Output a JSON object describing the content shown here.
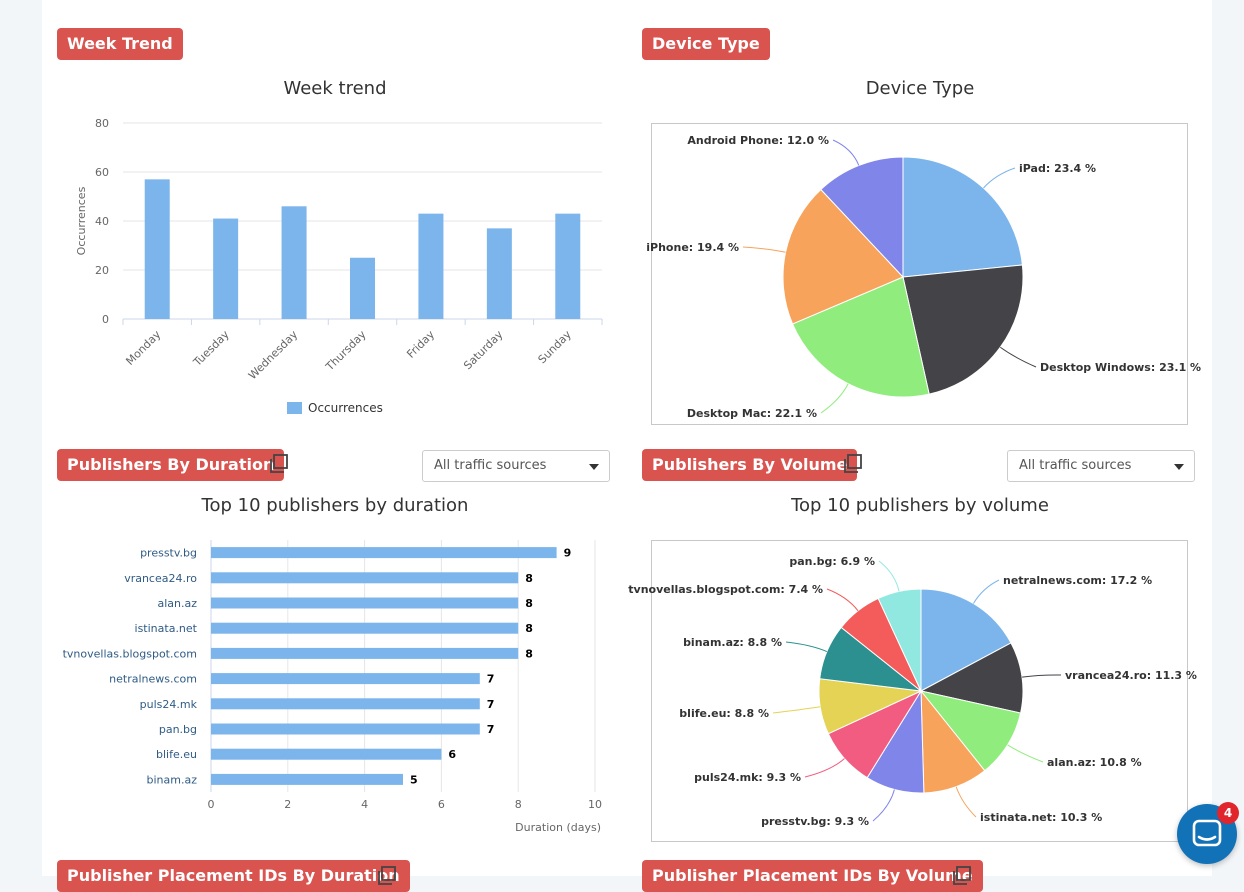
{
  "sections": {
    "week_trend": {
      "badge": "Week Trend",
      "chart_title": "Week trend"
    },
    "device_type": {
      "badge": "Device Type",
      "chart_title": "Device Type"
    },
    "pub_duration": {
      "badge": "Publishers By Duration",
      "chart_title": "Top 10 publishers by duration",
      "filter": "All traffic sources"
    },
    "pub_volume": {
      "badge": "Publishers By Volume",
      "chart_title": "Top 10 publishers by volume",
      "filter": "All traffic sources"
    },
    "placement_duration": {
      "badge": "Publisher Placement IDs By Duration"
    },
    "placement_volume": {
      "badge": "Publisher Placement IDs By Volume"
    }
  },
  "chat": {
    "count": "4"
  },
  "colors": {
    "accent": "#d9534f",
    "bar": "#7cb5ec",
    "chat": "#1272b8"
  },
  "icons": {
    "copy": "copy-icon",
    "chat": "chat-bubble-icon",
    "caret": "caret-down-icon"
  },
  "chart_data": [
    {
      "type": "bar",
      "title": "Week trend",
      "categories": [
        "Monday",
        "Tuesday",
        "Wednesday",
        "Thursday",
        "Friday",
        "Saturday",
        "Sunday"
      ],
      "series": [
        {
          "name": "Occurrences",
          "values": [
            57,
            41,
            46,
            25,
            43,
            37,
            43
          ]
        }
      ],
      "ylabel": "Occurrences",
      "ylim": [
        0,
        80
      ],
      "yticks": [
        "0",
        "20",
        "40",
        "60",
        "80"
      ],
      "grid": true,
      "legend": "bottom"
    },
    {
      "type": "pie",
      "title": "Device Type",
      "slices": [
        {
          "label": "iPad: 23.4 %",
          "value": 23.4,
          "color": "#7cb5ec"
        },
        {
          "label": "Desktop Windows: 23.1 %",
          "value": 23.1,
          "color": "#434348"
        },
        {
          "label": "Desktop Mac: 22.1 %",
          "value": 22.1,
          "color": "#90ed7d"
        },
        {
          "label": "iPhone: 19.4 %",
          "value": 19.4,
          "color": "#f7a35c"
        },
        {
          "label": "Android Phone: 12.0 %",
          "value": 12.0,
          "color": "#8085e9"
        }
      ]
    },
    {
      "type": "bar",
      "orientation": "horizontal",
      "title": "Top 10 publishers by duration",
      "categories": [
        "presstv.bg",
        "vrancea24.ro",
        "alan.az",
        "istinata.net",
        "tvnovellas.blogspot.com",
        "netralnews.com",
        "puls24.mk",
        "pan.bg",
        "blife.eu",
        "binam.az"
      ],
      "values": [
        9,
        8,
        8,
        8,
        8,
        7,
        7,
        7,
        6,
        5
      ],
      "data_labels": [
        "9",
        "8",
        "8",
        "8",
        "8",
        "7",
        "7",
        "7",
        "6",
        "5"
      ],
      "xlabel": "Duration (days)",
      "xlim": [
        0,
        10
      ],
      "xticks": [
        "0",
        "2",
        "4",
        "6",
        "8",
        "10"
      ],
      "grid": true
    },
    {
      "type": "pie",
      "title": "Top 10 publishers by volume",
      "slices": [
        {
          "label": "netralnews.com: 17.2 %",
          "value": 17.2,
          "color": "#7cb5ec"
        },
        {
          "label": "vrancea24.ro: 11.3 %",
          "value": 11.3,
          "color": "#434348"
        },
        {
          "label": "alan.az: 10.8 %",
          "value": 10.8,
          "color": "#90ed7d"
        },
        {
          "label": "istinata.net: 10.3 %",
          "value": 10.3,
          "color": "#f7a35c"
        },
        {
          "label": "presstv.bg: 9.3 %",
          "value": 9.3,
          "color": "#8085e9"
        },
        {
          "label": "puls24.mk: 9.3 %",
          "value": 9.3,
          "color": "#f15c80"
        },
        {
          "label": "blife.eu: 8.8 %",
          "value": 8.8,
          "color": "#e4d354"
        },
        {
          "label": "binam.az: 8.8 %",
          "value": 8.8,
          "color": "#2b908f"
        },
        {
          "label": "tvnovellas.blogspot.com: 7.4 %",
          "value": 7.4,
          "color": "#f45b5b"
        },
        {
          "label": "pan.bg: 6.9 %",
          "value": 6.9,
          "color": "#91e8e1"
        }
      ]
    }
  ]
}
